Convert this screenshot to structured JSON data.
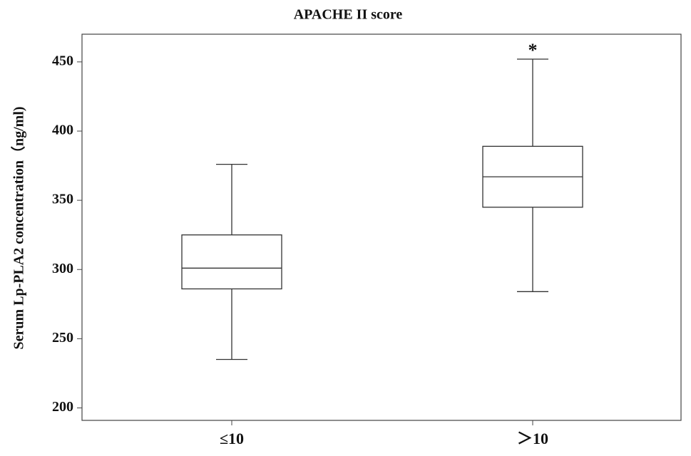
{
  "chart_data": {
    "type": "box",
    "title": "APACHE II score",
    "y_label": "Serum Lp-PLA2 concentration（ng/ml)",
    "categories": [
      "≤10",
      "＞10"
    ],
    "boxes": [
      {
        "min": 235,
        "q1": 286,
        "median": 301,
        "q3": 325,
        "max": 376
      },
      {
        "min": 284,
        "q1": 345,
        "median": 367,
        "q3": 389,
        "max": 452
      }
    ],
    "annotation": "*",
    "color": "#333333",
    "ylim": [
      191,
      470
    ],
    "yticks": [
      200,
      250,
      300,
      350,
      400,
      450
    ]
  }
}
